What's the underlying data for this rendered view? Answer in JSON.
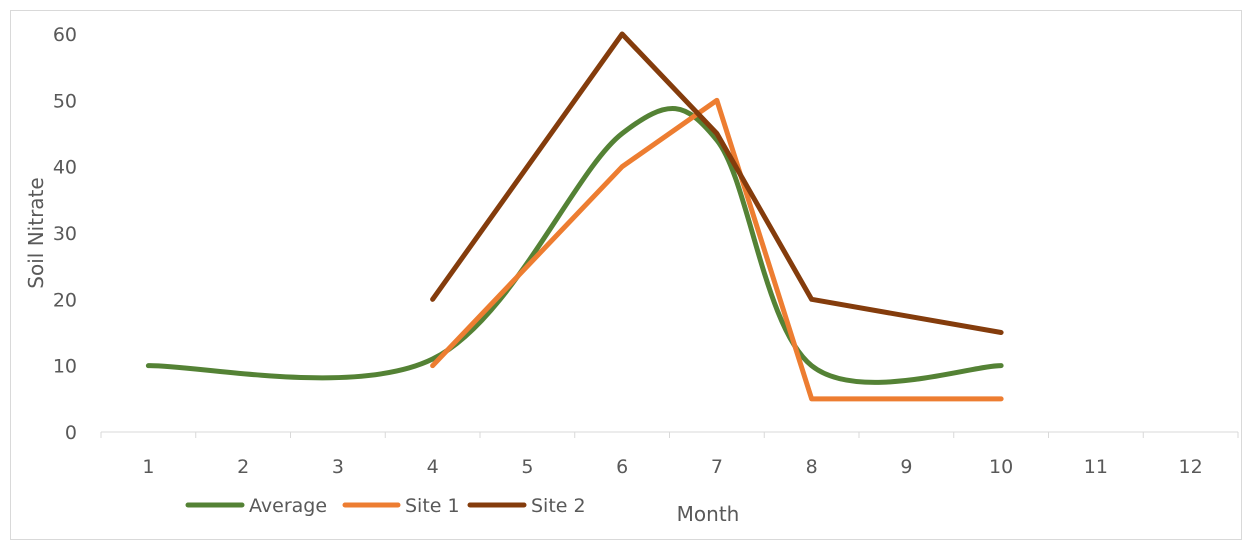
{
  "chart_data": {
    "type": "line",
    "title": "",
    "xlabel": "Month",
    "ylabel": "Soil  Nitrate",
    "categories": [
      "1",
      "2",
      "3",
      "4",
      "5",
      "6",
      "7",
      "8",
      "9",
      "10",
      "11",
      "12"
    ],
    "ylim": [
      0,
      60
    ],
    "yticks": [
      "0",
      "10",
      "20",
      "30",
      "40",
      "50",
      "60"
    ],
    "grid": false,
    "legend_position": "bottom-left",
    "series": [
      {
        "name": "Average",
        "color": "#548235",
        "smooth": true,
        "values": [
          10,
          null,
          null,
          11,
          null,
          45,
          44,
          10,
          null,
          10,
          null,
          null
        ]
      },
      {
        "name": "Site 1",
        "color": "#ed7d31",
        "smooth": false,
        "values": [
          null,
          null,
          null,
          10,
          null,
          40,
          50,
          5,
          null,
          5,
          null,
          null
        ]
      },
      {
        "name": "Site 2",
        "color": "#843c0c",
        "smooth": false,
        "values": [
          null,
          null,
          null,
          20,
          null,
          60,
          45,
          20,
          null,
          15,
          null,
          null
        ]
      }
    ]
  }
}
